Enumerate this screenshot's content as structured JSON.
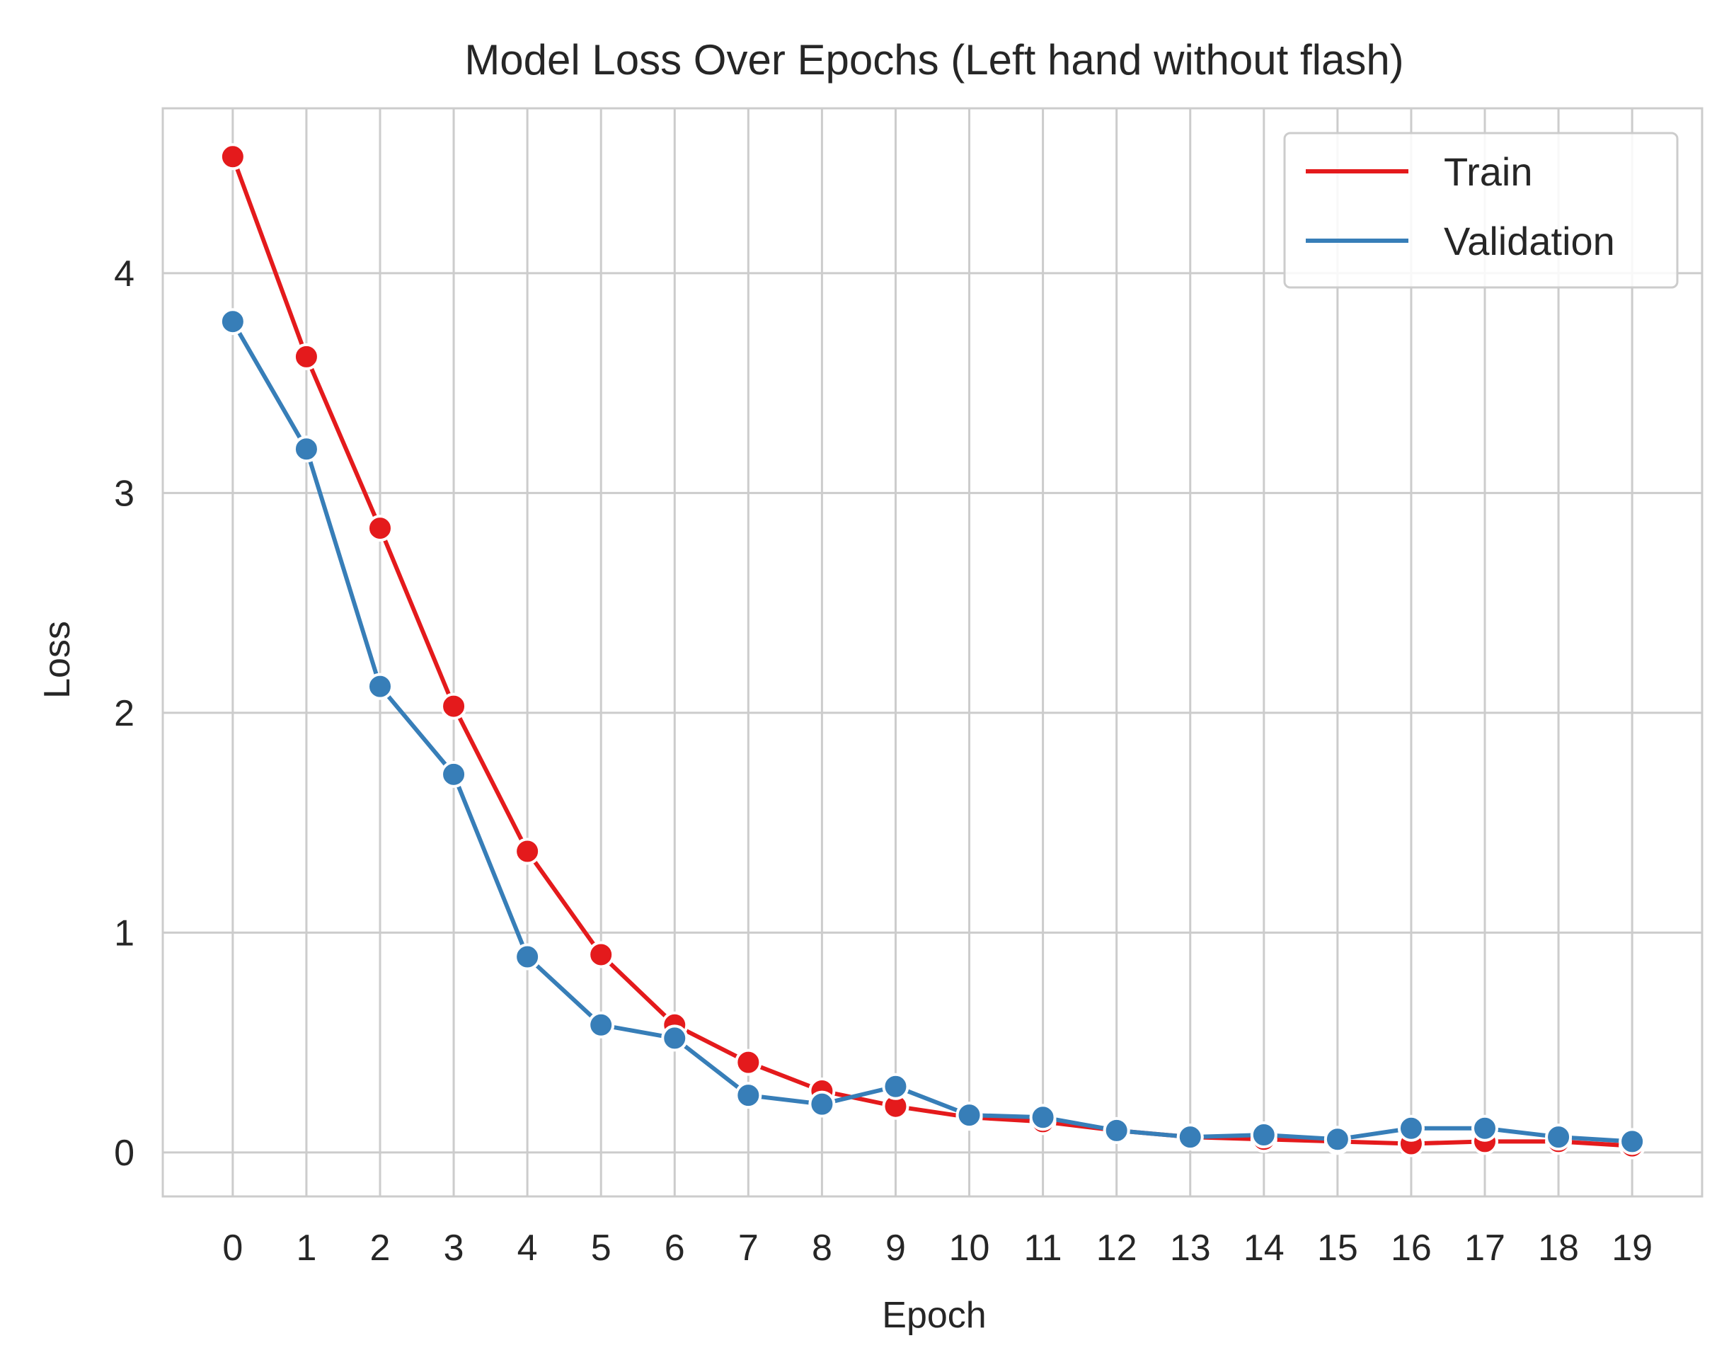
{
  "chart_data": {
    "type": "line",
    "title": "Model Loss Over Epochs (Left hand without flash)",
    "xlabel": "Epoch",
    "ylabel": "Loss",
    "x": [
      0,
      1,
      2,
      3,
      4,
      5,
      6,
      7,
      8,
      9,
      10,
      11,
      12,
      13,
      14,
      15,
      16,
      17,
      18,
      19
    ],
    "xlim": [
      -0.95,
      19.95
    ],
    "ylim": [
      -0.2,
      4.75
    ],
    "yticks": [
      0,
      1,
      2,
      3,
      4
    ],
    "grid": true,
    "legend_position": "upper right",
    "series": [
      {
        "name": "Train",
        "color": "#e41a1c",
        "marker": "circle",
        "values": [
          4.53,
          3.62,
          2.84,
          2.03,
          1.37,
          0.9,
          0.58,
          0.41,
          0.28,
          0.21,
          0.16,
          0.14,
          0.1,
          0.07,
          0.06,
          0.05,
          0.04,
          0.05,
          0.05,
          0.03
        ]
      },
      {
        "name": "Validation",
        "color": "#377eb8",
        "marker": "circle",
        "values": [
          3.78,
          3.2,
          2.12,
          1.72,
          0.89,
          0.58,
          0.52,
          0.26,
          0.22,
          0.3,
          0.17,
          0.16,
          0.1,
          0.07,
          0.08,
          0.06,
          0.11,
          0.11,
          0.07,
          0.05
        ]
      }
    ]
  }
}
